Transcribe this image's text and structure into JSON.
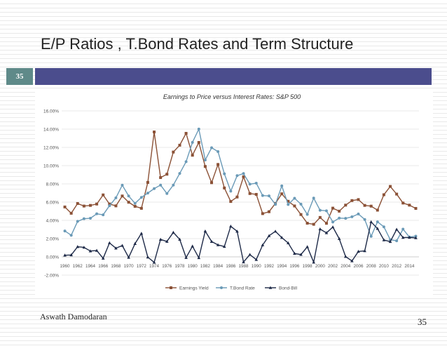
{
  "slide": {
    "title": "E/P Ratios , T.Bond Rates and Term Structure",
    "badge": "35",
    "author": "Aswath Damodaran",
    "page_number": "35"
  },
  "colors": {
    "header_bar": "#4b4d8d",
    "badge": "#5f8a89",
    "earnings": "#8b5136",
    "tbond": "#6a9ab7",
    "bondbill": "#1e2a48"
  },
  "chart_data": {
    "type": "line",
    "title": "Earnings to Price versus Interest Rates: S&P 500",
    "xlabel": "",
    "ylabel": "",
    "ylim": [
      -0.02,
      0.16
    ],
    "yticks": [
      "-2.00%",
      "0.00%",
      "2.00%",
      "4.00%",
      "6.00%",
      "8.00%",
      "10.00%",
      "12.00%",
      "14.00%",
      "16.00%"
    ],
    "ytick_values": [
      -0.02,
      0,
      0.02,
      0.04,
      0.06,
      0.08,
      0.1,
      0.12,
      0.14,
      0.16
    ],
    "x": [
      1960,
      1961,
      1962,
      1963,
      1964,
      1965,
      1966,
      1967,
      1968,
      1969,
      1970,
      1971,
      1972,
      1973,
      1974,
      1975,
      1976,
      1977,
      1978,
      1979,
      1980,
      1981,
      1982,
      1983,
      1984,
      1985,
      1986,
      1987,
      1988,
      1989,
      1990,
      1991,
      1992,
      1993,
      1994,
      1995,
      1996,
      1997,
      1998,
      1999,
      2000,
      2001,
      2002,
      2003,
      2004,
      2005,
      2006,
      2007,
      2008,
      2009,
      2010,
      2011,
      2012,
      2013,
      2014,
      2015
    ],
    "x_tick_labels": [
      "1960",
      "1962",
      "1964",
      "1966",
      "1968",
      "1970",
      "1972",
      "1974",
      "1976",
      "1978",
      "1980",
      "1982",
      "1984",
      "1986",
      "1988",
      "1990",
      "1992",
      "1994",
      "1996",
      "1998",
      "2000",
      "2002",
      "2004",
      "2006",
      "2008",
      "2010",
      "2012",
      "2014"
    ],
    "legend_position": "bottom",
    "series": [
      {
        "name": "Earnings Yield",
        "marker": "square",
        "values": [
          0.0547,
          0.0478,
          0.0585,
          0.0557,
          0.0564,
          0.0579,
          0.0679,
          0.0579,
          0.0559,
          0.0667,
          0.0599,
          0.0554,
          0.0532,
          0.0816,
          0.1369,
          0.0869,
          0.0906,
          0.1149,
          0.1224,
          0.1354,
          0.1114,
          0.1254,
          0.0991,
          0.0813,
          0.1013,
          0.0755,
          0.0607,
          0.0656,
          0.0878,
          0.0694,
          0.0685,
          0.0474,
          0.0495,
          0.0586,
          0.0691,
          0.0609,
          0.0558,
          0.0464,
          0.0369,
          0.0357,
          0.0432,
          0.0368,
          0.0534,
          0.0501,
          0.0567,
          0.0617,
          0.0628,
          0.0564,
          0.0556,
          0.0512,
          0.0681,
          0.0772,
          0.0688,
          0.059,
          0.0567,
          0.0531
        ]
      },
      {
        "name": "T.Bond Rate",
        "marker": "circle",
        "values": [
          0.0284,
          0.0237,
          0.0389,
          0.0418,
          0.0423,
          0.0472,
          0.0461,
          0.0561,
          0.0647,
          0.0786,
          0.0667,
          0.0587,
          0.0652,
          0.0699,
          0.0748,
          0.0787,
          0.0694,
          0.0787,
          0.0914,
          0.1043,
          0.1255,
          0.1401,
          0.1062,
          0.1196,
          0.1154,
          0.0911,
          0.072,
          0.089,
          0.0913,
          0.0797,
          0.0808,
          0.0672,
          0.0668,
          0.0575,
          0.0778,
          0.0574,
          0.0642,
          0.0578,
          0.0465,
          0.0644,
          0.0511,
          0.0505,
          0.0382,
          0.0425,
          0.0422,
          0.0439,
          0.047,
          0.041,
          0.0225,
          0.0384,
          0.0329,
          0.0188,
          0.0176,
          0.0304,
          0.0217,
          0.0227
        ]
      },
      {
        "name": "Bond-Bill",
        "marker": "triangle",
        "values": [
          0.0018,
          0.0021,
          0.0111,
          0.0104,
          0.0064,
          0.007,
          -0.0016,
          0.0153,
          0.0095,
          0.0124,
          -0.0006,
          0.0145,
          0.0257,
          -0.0003,
          -0.006,
          0.0191,
          0.0169,
          0.0268,
          0.0192,
          -0.0008,
          0.0117,
          -0.001,
          0.0282,
          0.0168,
          0.0131,
          0.0113,
          0.0335,
          0.028,
          -0.0056,
          0.0025,
          -0.003,
          0.013,
          0.0231,
          0.028,
          0.0211,
          0.0152,
          0.0037,
          0.0025,
          0.011,
          -0.0059,
          0.0305,
          0.0263,
          0.0327,
          0.0199,
          0.0003,
          -0.0045,
          0.0059,
          0.0066,
          0.0383,
          0.031,
          0.0185,
          0.0167,
          0.0301,
          0.0212,
          0.0213,
          0.0208
        ]
      }
    ]
  }
}
